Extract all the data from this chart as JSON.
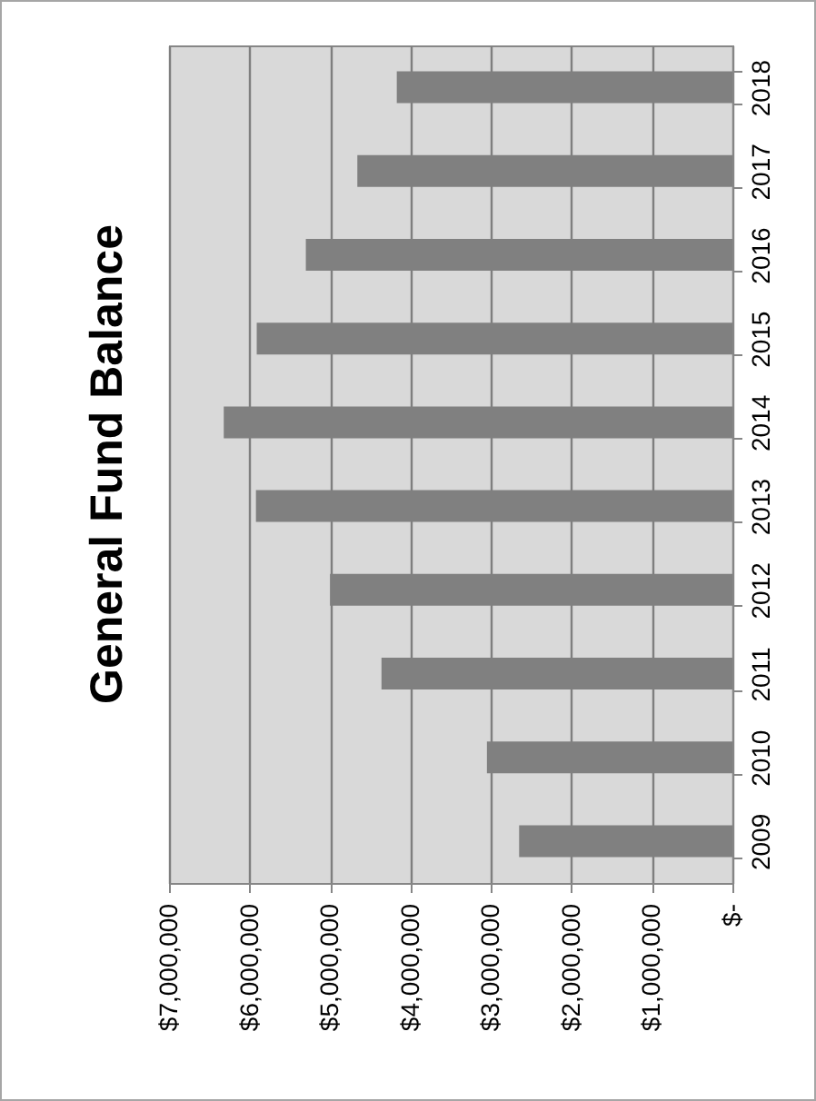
{
  "chart_data": {
    "type": "bar",
    "title": "General Fund Balance",
    "orientation": "horizontal",
    "categories": [
      "2018",
      "2017",
      "2016",
      "2015",
      "2014",
      "2013",
      "2012",
      "2011",
      "2010",
      "2009"
    ],
    "values": [
      4170000,
      4660000,
      5300000,
      5910000,
      6320000,
      5920000,
      5000000,
      4360000,
      3050000,
      2650000
    ],
    "color": "#808080",
    "xlim": [
      7000000,
      0
    ],
    "xticks": [
      {
        "value": 7000000,
        "label": "$7,000,000"
      },
      {
        "value": 6000000,
        "label": "$6,000,000"
      },
      {
        "value": 5000000,
        "label": "$5,000,000"
      },
      {
        "value": 4000000,
        "label": "$4,000,000"
      },
      {
        "value": 3000000,
        "label": "$3,000,000"
      },
      {
        "value": 2000000,
        "label": "$2,000,000"
      },
      {
        "value": 1000000,
        "label": "$1,000,000"
      },
      {
        "value": 0,
        "label": "$-"
      }
    ],
    "grid": "x"
  }
}
